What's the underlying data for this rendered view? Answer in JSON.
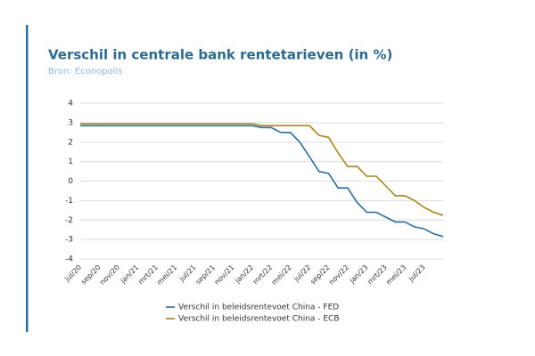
{
  "chart_data": {
    "type": "line",
    "title": "Verschil in centrale bank rentetarieven (in %)",
    "subtitle": "Bron: Econopolis",
    "categories": [
      "jul/20",
      null,
      "sep/20",
      null,
      "nov/20",
      null,
      "jan/21",
      null,
      "mrt/21",
      null,
      "mei/21",
      null,
      "jul/21",
      null,
      "sep/21",
      null,
      "nov/21",
      null,
      "jan/22",
      null,
      "mrt/22",
      null,
      "mei/22",
      null,
      "jul/22",
      null,
      "sep/22",
      null,
      "nov/22",
      null,
      "jan/23",
      null,
      "mrt/23",
      null,
      "mei/23",
      null,
      "jul/23",
      null,
      null
    ],
    "series": [
      {
        "name": "Verschil in beleidsrentevoet China - FED",
        "color": "#2e6e9e",
        "values": [
          2.85,
          2.85,
          2.85,
          2.85,
          2.85,
          2.85,
          2.85,
          2.85,
          2.85,
          2.85,
          2.85,
          2.85,
          2.85,
          2.85,
          2.85,
          2.85,
          2.85,
          2.85,
          2.85,
          2.75,
          2.75,
          2.5,
          2.5,
          2.0,
          1.25,
          0.5,
          0.4,
          -0.35,
          -0.35,
          -1.1,
          -1.6,
          -1.6,
          -1.85,
          -2.1,
          -2.1,
          -2.35,
          -2.45,
          -2.7,
          -2.85
        ]
      },
      {
        "name": "Verschil in beleidsrentevoet China - ECB",
        "color": "#a8861e",
        "values": [
          2.95,
          2.95,
          2.95,
          2.95,
          2.95,
          2.95,
          2.95,
          2.95,
          2.95,
          2.95,
          2.95,
          2.95,
          2.95,
          2.95,
          2.95,
          2.95,
          2.95,
          2.95,
          2.95,
          2.85,
          2.85,
          2.85,
          2.85,
          2.85,
          2.85,
          2.35,
          2.25,
          1.45,
          0.75,
          0.75,
          0.25,
          0.25,
          -0.25,
          -0.75,
          -0.75,
          -1.0,
          -1.35,
          -1.6,
          -1.75
        ]
      }
    ],
    "ylim": [
      -4,
      4
    ],
    "yticks": [
      -4,
      -3,
      -2,
      -1,
      0,
      1,
      2,
      3,
      4
    ],
    "grid": true,
    "legend": "bottom"
  }
}
